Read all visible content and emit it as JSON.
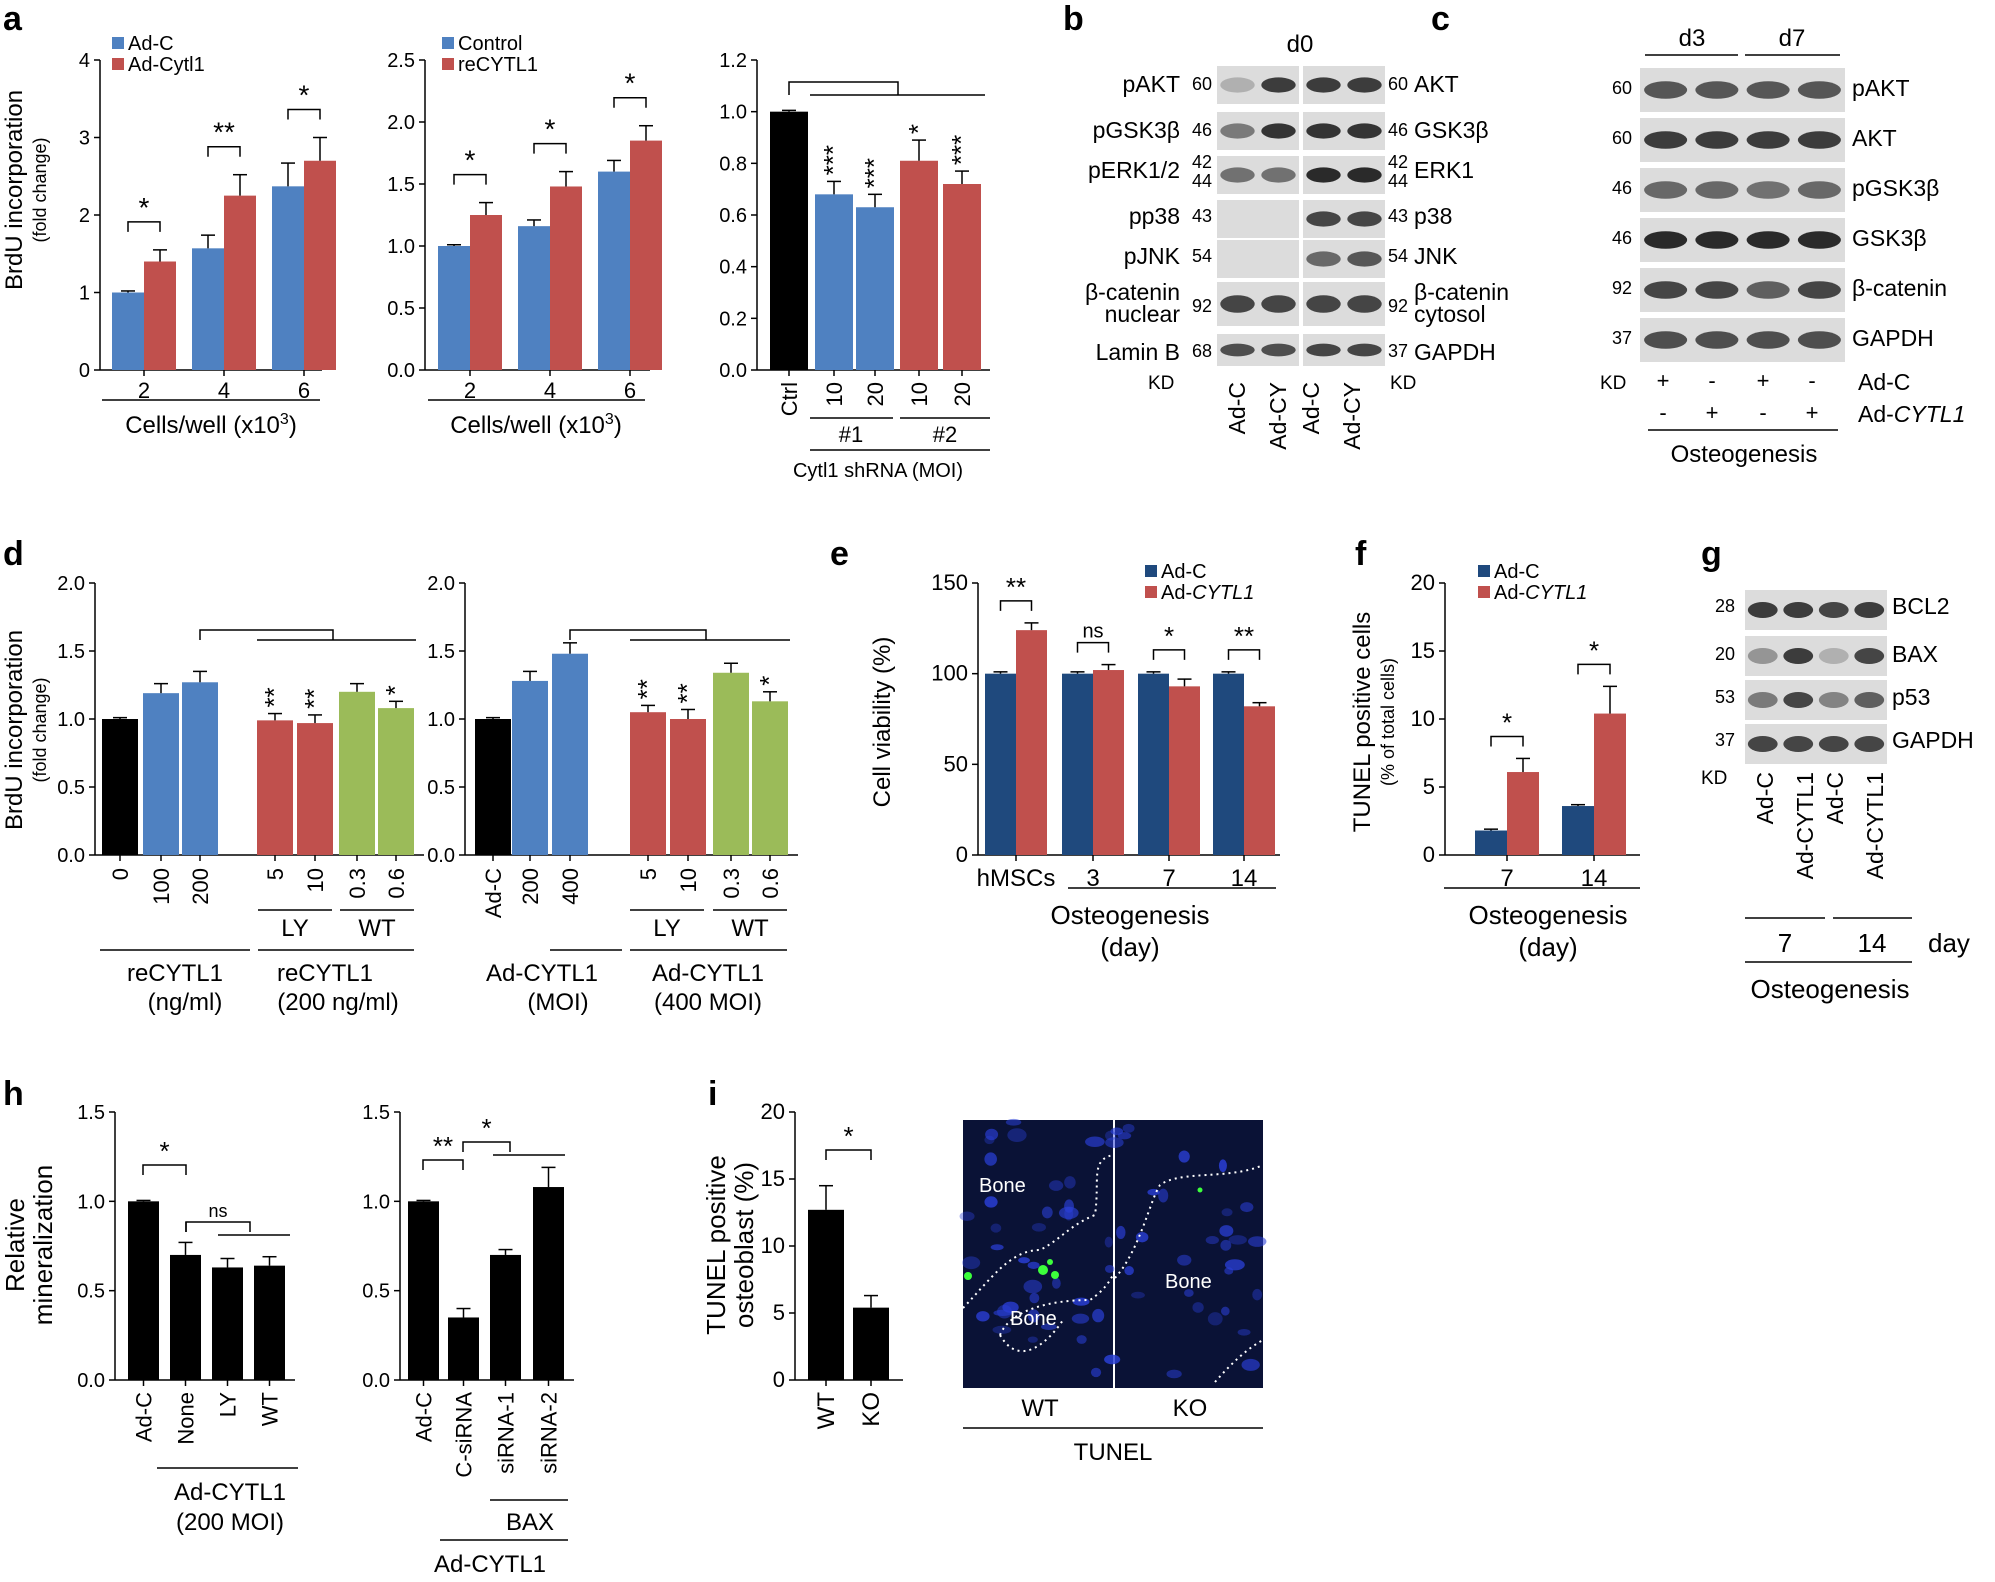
{
  "colors": {
    "blue": "#4f81c1",
    "red": "#c0504d",
    "black": "#000000",
    "green": "#9bbb59",
    "navy": "#1f497d",
    "blot_bg": "#dcdcdc",
    "band": "#2a2a2a",
    "micro_bg": "#0a1236"
  },
  "panel_labels": [
    "a",
    "b",
    "c",
    "d",
    "e",
    "f",
    "g",
    "h",
    "i"
  ],
  "a": {
    "ylabel": "BrdU incorporation",
    "ylabel2": "(fold change)",
    "charts": [
      {
        "type": "bar",
        "categories": [
          "2",
          "4",
          "6"
        ],
        "series": [
          {
            "name": "Ad-C",
            "values": [
              1.0,
              1.57,
              2.37
            ],
            "err": [
              0.02,
              0.17,
              0.3
            ]
          },
          {
            "name": "Ad-Cytl1",
            "values": [
              1.4,
              2.25,
              2.7
            ],
            "err": [
              0.15,
              0.27,
              0.3
            ]
          }
        ],
        "ylim": [
          0,
          4
        ],
        "yticks": [
          "0",
          "1",
          "2",
          "3",
          "4"
        ],
        "xlabel_main": "Cells/well (x10",
        "xlabel_sup": "3",
        "xlabel_end": ")",
        "legend": [
          "Ad-C",
          "Ad-Cytl1"
        ],
        "sig": [
          "*",
          "**",
          "*"
        ]
      },
      {
        "type": "bar",
        "categories": [
          "2",
          "4",
          "6"
        ],
        "series": [
          {
            "name": "Control",
            "values": [
              1.0,
              1.16,
              1.6
            ],
            "err": [
              0.01,
              0.05,
              0.09
            ]
          },
          {
            "name": "reCYTL1",
            "values": [
              1.25,
              1.48,
              1.85
            ],
            "err": [
              0.1,
              0.12,
              0.12
            ]
          }
        ],
        "ylim": [
          0,
          2.5
        ],
        "yticks": [
          "0.0",
          "0.5",
          "1.0",
          "1.5",
          "2.0",
          "2.5"
        ],
        "xlabel_main": "Cells/well (x10",
        "xlabel_sup": "3",
        "xlabel_end": ")",
        "legend": [
          "Control",
          "reCYTL1"
        ],
        "sig": [
          "*",
          "*",
          "*"
        ]
      },
      {
        "type": "bar",
        "categories": [
          "Ctrl",
          "10",
          "20",
          "10",
          "20"
        ],
        "values": [
          1.0,
          0.68,
          0.63,
          0.81,
          0.72
        ],
        "err": [
          0.005,
          0.05,
          0.05,
          0.08,
          0.05
        ],
        "ylim": [
          0,
          1.2
        ],
        "yticks": [
          "0.0",
          "0.2",
          "0.4",
          "0.6",
          "0.8",
          "1.0",
          "1.2"
        ],
        "groups": [
          "#1",
          "#2"
        ],
        "xlabel": "Cytl1 shRNA (MOI)",
        "sig": [
          "***",
          "***",
          "*",
          "***"
        ]
      }
    ]
  },
  "b": {
    "top_label": "d0",
    "left_labels": [
      "pAKT",
      "pGSK3β",
      "pERK1/2",
      "pp38",
      "pJNK",
      "β-catenin",
      "nuclear",
      "Lamin B"
    ],
    "left_kd": [
      "60",
      "46",
      "42",
      "44",
      "43",
      "54",
      "92",
      "68"
    ],
    "right_kd": [
      "60",
      "46",
      "42",
      "44",
      "43",
      "54",
      "92",
      "37"
    ],
    "right_labels": [
      "AKT",
      "GSK3β",
      "ERK1",
      "p38",
      "JNK",
      "β-catenin",
      "cytosol",
      "GAPDH"
    ],
    "kd": "KD",
    "lanes": [
      "Ad-C",
      "Ad-CY",
      "Ad-C",
      "Ad-CY"
    ]
  },
  "c": {
    "groups": [
      "d3",
      "d7"
    ],
    "kd": [
      "60",
      "60",
      "46",
      "46",
      "92",
      "37"
    ],
    "labels": [
      "pAKT",
      "AKT",
      "pGSK3β",
      "GSK3β",
      "β-catenin",
      "GAPDH"
    ],
    "kd_label": "KD",
    "row1": [
      "+",
      "-",
      "+",
      "-"
    ],
    "row2": [
      "-",
      "+",
      "-",
      "+"
    ],
    "row1_label": "Ad-C",
    "row2_label": "Ad-CYTL1",
    "footer": "Osteogenesis"
  },
  "d": {
    "ylabel": "BrdU incorporation",
    "ylabel2": "(fold change)",
    "charts": [
      {
        "type": "bar",
        "categories": [
          "0",
          "100",
          "200",
          "5",
          "10",
          "0.3",
          "0.6"
        ],
        "values": [
          1.0,
          1.19,
          1.27,
          0.99,
          0.97,
          1.2,
          1.08
        ],
        "err": [
          0.01,
          0.07,
          0.08,
          0.05,
          0.06,
          0.06,
          0.05
        ],
        "ylim": [
          0,
          2.0
        ],
        "yticks": [
          "0.0",
          "0.5",
          "1.0",
          "1.5",
          "2.0"
        ],
        "inhib": [
          "LY",
          "WT"
        ],
        "group_labels": [
          "reCYTL1",
          "(ng/ml)",
          "reCYTL1",
          "(200 ng/ml)"
        ],
        "sig": [
          "**",
          "**",
          "*"
        ]
      },
      {
        "type": "bar",
        "categories": [
          "Ad-C",
          "200",
          "400",
          "5",
          "10",
          "0.3",
          "0.6"
        ],
        "values": [
          1.0,
          1.28,
          1.48,
          1.05,
          1.0,
          1.34,
          1.13
        ],
        "err": [
          0.01,
          0.07,
          0.08,
          0.05,
          0.07,
          0.07,
          0.07
        ],
        "ylim": [
          0,
          2.0
        ],
        "yticks": [
          "0.0",
          "0.5",
          "1.0",
          "1.5",
          "2.0"
        ],
        "inhib": [
          "LY",
          "WT"
        ],
        "group_labels": [
          "Ad-CYTL1",
          "(MOI)",
          "Ad-CYTL1",
          "(400 MOI)"
        ],
        "sig": [
          "**",
          "**",
          "*"
        ]
      }
    ]
  },
  "e": {
    "type": "bar",
    "ylabel": "Cell viability (%)",
    "categories": [
      "hMSCs",
      "3",
      "7",
      "14"
    ],
    "series": [
      {
        "name": "Ad-C",
        "values": [
          100,
          100,
          100,
          100
        ],
        "err": [
          1,
          1,
          1,
          1
        ]
      },
      {
        "name": "Ad-CYTL1",
        "values": [
          124,
          102,
          93,
          82
        ],
        "err": [
          4,
          3,
          4,
          2
        ]
      }
    ],
    "ylim": [
      0,
      150
    ],
    "yticks": [
      "0",
      "50",
      "100",
      "150"
    ],
    "legend": [
      "Ad-C",
      "Ad-"
    ],
    "legend_italic": "CYTL1",
    "xlabel1": "Osteogenesis",
    "xlabel2": "(day)",
    "sig": [
      "**",
      "ns",
      "*",
      "**"
    ]
  },
  "f": {
    "type": "bar",
    "ylabel": "TUNEL positive cells",
    "ylabel2": "(% of total cells)",
    "categories": [
      "7",
      "14"
    ],
    "series": [
      {
        "name": "Ad-C",
        "values": [
          1.8,
          3.6
        ],
        "err": [
          0.1,
          0.1
        ]
      },
      {
        "name": "Ad-CYTL1",
        "values": [
          6.1,
          10.4
        ],
        "err": [
          1.0,
          2.0
        ]
      }
    ],
    "ylim": [
      0,
      20
    ],
    "yticks": [
      "0",
      "5",
      "10",
      "15",
      "20"
    ],
    "legend": [
      "Ad-C",
      "Ad-"
    ],
    "legend_italic": "CYTL1",
    "xlabel1": "Osteogenesis",
    "xlabel2": "(day)",
    "sig": [
      "*",
      "*"
    ]
  },
  "g": {
    "kd": [
      "28",
      "20",
      "53",
      "37"
    ],
    "labels": [
      "BCL2",
      "BAX",
      "p53",
      "GAPDH"
    ],
    "kd_label": "KD",
    "lanes": [
      "Ad-C",
      "Ad-CYTL1",
      "Ad-C",
      "Ad-CYTL1"
    ],
    "days": [
      "7",
      "14"
    ],
    "day_label": "day",
    "footer": "Osteogenesis"
  },
  "h": {
    "ylabel": "Relative",
    "ylabel2": "mineralization",
    "charts": [
      {
        "type": "bar",
        "categories": [
          "Ad-C",
          "None",
          "LY",
          "WT"
        ],
        "values": [
          1.0,
          0.7,
          0.63,
          0.64
        ],
        "err": [
          0.005,
          0.07,
          0.05,
          0.05
        ],
        "ylim": [
          0,
          1.5
        ],
        "yticks": [
          "0.0",
          "0.5",
          "1.0",
          "1.5"
        ],
        "group1": "Ad-CYTL1",
        "group2": "(200 MOI)",
        "sig": [
          "*",
          "ns"
        ]
      },
      {
        "type": "bar",
        "categories": [
          "Ad-C",
          "C-siRNA",
          "siRNA-1",
          "siRNA-2"
        ],
        "values": [
          1.0,
          0.35,
          0.7,
          1.08
        ],
        "err": [
          0.005,
          0.05,
          0.03,
          0.11
        ],
        "ylim": [
          0,
          1.5
        ],
        "yticks": [
          "0.0",
          "0.5",
          "1.0",
          "1.5"
        ],
        "group1": "BAX",
        "group2": "Ad-CYTL1",
        "sig": [
          "**",
          "*"
        ]
      }
    ]
  },
  "i": {
    "type": "bar",
    "ylabel": "TUNEL positive",
    "ylabel2": "osteoblast (%)",
    "categories": [
      "WT",
      "KO"
    ],
    "values": [
      12.7,
      5.4
    ],
    "err": [
      1.8,
      0.9
    ],
    "ylim": [
      0,
      20
    ],
    "yticks": [
      "0",
      "5",
      "10",
      "15",
      "20"
    ],
    "sig": [
      "*"
    ],
    "image_labels": [
      "Bone",
      "Bone",
      "Bone"
    ],
    "image_captions": [
      "WT",
      "KO"
    ],
    "image_footer": "TUNEL"
  }
}
